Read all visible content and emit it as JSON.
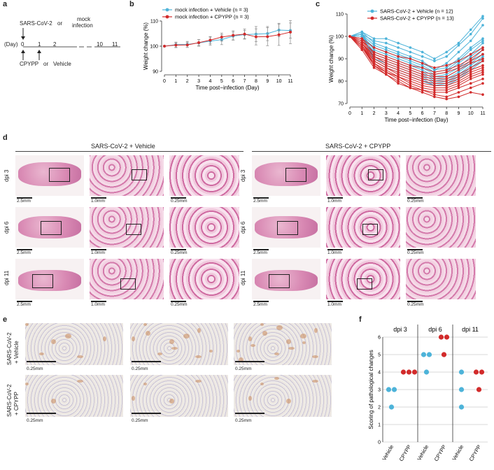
{
  "panels": {
    "a": "a",
    "b": "b",
    "c": "c",
    "d": "d",
    "e": "e",
    "f": "f"
  },
  "panel_a": {
    "sars": "SARS-CoV-2",
    "or1": "or",
    "mock": "mock",
    "infection": "infection",
    "day": "(Day)",
    "d0": "0",
    "d1": "1",
    "d2": "2",
    "d10": "10",
    "d11": "11",
    "cpypp": "CPYPP",
    "or2": "or",
    "vehicle": "Vehicle"
  },
  "panel_d": {
    "vehicle_header": "SARS-CoV-2 + Vehicle",
    "cpypp_header": "SARS-CoV-2 + CPYPP",
    "rows": [
      "dpi 3",
      "dpi 6",
      "dpi 11"
    ],
    "scales": [
      "2.5mm",
      "1.0mm",
      "0.25mm"
    ]
  },
  "panel_e": {
    "row1_l1": "SARS-CoV-2",
    "row1_l2": "+ Vehicle",
    "row2_l1": "SARS-CoV-2",
    "row2_l2": "+ CPYPP",
    "scale": "0.25mm"
  },
  "colors": {
    "blue": "#4db3d9",
    "red": "#d22b2b",
    "gray": "#555555"
  },
  "chart_data": [
    {
      "type": "line",
      "panel": "b",
      "xlabel": "Time post−infection (Day)",
      "ylabel": "Weight change (%)",
      "x": [
        0,
        1,
        2,
        3,
        4,
        5,
        6,
        7,
        8,
        9,
        10,
        11
      ],
      "xlim": [
        0,
        11
      ],
      "ylim": [
        90,
        110
      ],
      "yticks": [
        90,
        100,
        110
      ],
      "legend": "top-left",
      "series": [
        {
          "name": "mock infection + Vehicle (n = 3)",
          "color": "#4db3d9",
          "values": [
            100,
            100.6,
            100.7,
            101.3,
            102,
            102.6,
            104,
            104.6,
            104.8,
            105,
            106.4,
            106.2
          ],
          "err": [
            0,
            1,
            1.2,
            1.3,
            1.6,
            2,
            1.6,
            1.6,
            3,
            2.8,
            2.7,
            3
          ]
        },
        {
          "name": "mock infection + CPYPP (n = 3)",
          "color": "#d22b2b",
          "values": [
            100,
            100.4,
            100.5,
            101.4,
            102.4,
            103.6,
            104.3,
            104.8,
            103.7,
            103.8,
            104.5,
            105.6
          ],
          "err": [
            0,
            1,
            1,
            1.2,
            1.4,
            1.6,
            1.8,
            2,
            3.2,
            3.6,
            4.2,
            4.6
          ]
        }
      ]
    },
    {
      "type": "line",
      "panel": "c",
      "xlabel": "Time post−infection (Day)",
      "ylabel": "Weight change (%)",
      "x": [
        0,
        1,
        2,
        3,
        4,
        5,
        6,
        7,
        8,
        9,
        10,
        11
      ],
      "xlim": [
        0,
        11
      ],
      "ylim": [
        70,
        110
      ],
      "yticks": [
        70,
        80,
        90,
        100,
        110
      ],
      "legend": "top-right",
      "series": [
        {
          "name": "SARS-CoV-2 + Vehicle (n = 12)",
          "color": "#4db3d9",
          "lines": [
            [
              100,
              102,
              99,
              99,
              97,
              95,
              93,
              90,
              93,
              97,
              103,
              109
            ],
            [
              100,
              101,
              98,
              97,
              95,
              93,
              91,
              89,
              91,
              96,
              101,
              108
            ],
            [
              100,
              102,
              97,
              95,
              93,
              91,
              89,
              85,
              88,
              93,
              98,
              105
            ],
            [
              100,
              101,
              96,
              94,
              92,
              90,
              88,
              85,
              86,
              90,
              95,
              99
            ],
            [
              100,
              100,
              95,
              93,
              91,
              89,
              87,
              84,
              85,
              89,
              94,
              98
            ],
            [
              100,
              101,
              94,
              92,
              90,
              88,
              86,
              83,
              84,
              88,
              92,
              97
            ],
            [
              100,
              100,
              93,
              91,
              89,
              87,
              85,
              82,
              83,
              86,
              91,
              95
            ],
            [
              100,
              101,
              92,
              90,
              88,
              86,
              84,
              81,
              82,
              85,
              89,
              94
            ],
            [
              100,
              100,
              91,
              89,
              87,
              85,
              83,
              80,
              81,
              84,
              88,
              92
            ],
            [
              100,
              101,
              90,
              88,
              86,
              84,
              82,
              79,
              80,
              83,
              87,
              91
            ],
            [
              100,
              100,
              90,
              87,
              85,
              83,
              81,
              78,
              79,
              82,
              86,
              90
            ],
            [
              100,
              101,
              89,
              86,
              84,
              82,
              80,
              78,
              78,
              81,
              85,
              89
            ]
          ]
        },
        {
          "name": "SARS-CoV-2 + CPYPP (n = 13)",
          "color": "#d22b2b",
          "lines": [
            [
              100,
              99,
              95,
              93,
              91,
              90,
              88,
              86,
              87,
              89,
              92,
              95
            ],
            [
              100,
              98,
              93,
              91,
              89,
              87,
              86,
              84,
              85,
              87,
              90,
              94
            ],
            [
              100,
              99,
              92,
              90,
              88,
              86,
              84,
              83,
              84,
              86,
              89,
              92
            ],
            [
              100,
              97,
              91,
              89,
              87,
              85,
              83,
              82,
              82,
              85,
              88,
              90
            ],
            [
              100,
              98,
              91,
              88,
              86,
              84,
              82,
              81,
              81,
              83,
              86,
              89
            ],
            [
              100,
              97,
              90,
              87,
              85,
              83,
              81,
              80,
              80,
              82,
              85,
              87
            ],
            [
              100,
              96,
              89,
              86,
              84,
              82,
              80,
              79,
              79,
              81,
              84,
              86
            ],
            [
              100,
              97,
              89,
              86,
              83,
              81,
              79,
              78,
              78,
              80,
              83,
              85
            ],
            [
              100,
              96,
              88,
              85,
              82,
              80,
              78,
              77,
              77,
              79,
              82,
              84
            ],
            [
              100,
              95,
              88,
              84,
              82,
              79,
              77,
              76,
              76,
              78,
              81,
              83
            ],
            [
              100,
              96,
              87,
              84,
              81,
              78,
              76,
              75,
              75,
              77,
              79,
              81
            ],
            [
              100,
              95,
              87,
              83,
              80,
              77,
              76,
              74,
              73,
              75,
              77,
              79
            ],
            [
              100,
              94,
              86,
              83,
              79,
              77,
              75,
              73,
              72,
              73,
              75,
              74
            ]
          ]
        }
      ]
    },
    {
      "type": "scatter",
      "panel": "f",
      "ylabel": "Scoring of pathological changes",
      "ylim": [
        0,
        6
      ],
      "yticks": [
        0,
        1,
        2,
        3,
        4,
        5,
        6
      ],
      "groups": [
        "dpi 3",
        "dpi 6",
        "dpi 11"
      ],
      "categories": [
        "Vehicle",
        "CPYPP",
        "Vehicle",
        "CPYPP",
        "Vehicle",
        "CPYPP"
      ],
      "points": [
        {
          "group": 0,
          "cat": "Vehicle",
          "values": [
            3,
            3,
            2
          ],
          "color": "#4db3d9"
        },
        {
          "group": 0,
          "cat": "CPYPP",
          "values": [
            4,
            4,
            4
          ],
          "color": "#d22b2b"
        },
        {
          "group": 1,
          "cat": "Vehicle",
          "values": [
            5,
            5,
            4
          ],
          "color": "#4db3d9"
        },
        {
          "group": 1,
          "cat": "CPYPP",
          "values": [
            6,
            6,
            5
          ],
          "color": "#d22b2b"
        },
        {
          "group": 2,
          "cat": "Vehicle",
          "values": [
            4,
            3,
            2
          ],
          "color": "#4db3d9"
        },
        {
          "group": 2,
          "cat": "CPYPP",
          "values": [
            4,
            4,
            3
          ],
          "color": "#d22b2b"
        }
      ]
    }
  ]
}
